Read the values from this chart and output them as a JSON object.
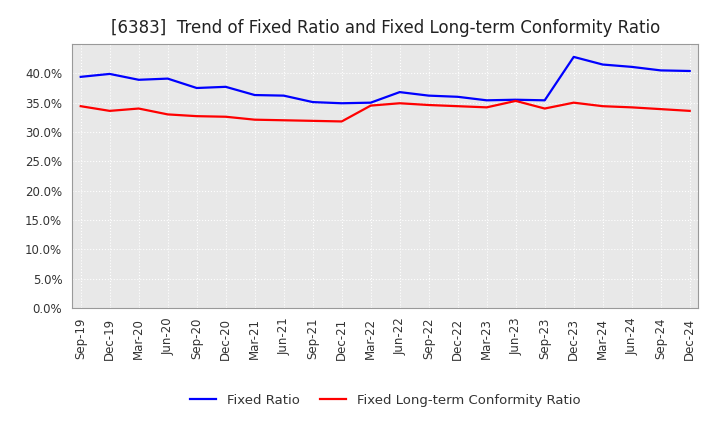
{
  "title": "[6383]  Trend of Fixed Ratio and Fixed Long-term Conformity Ratio",
  "x_labels": [
    "Sep-19",
    "Dec-19",
    "Mar-20",
    "Jun-20",
    "Sep-20",
    "Dec-20",
    "Mar-21",
    "Jun-21",
    "Sep-21",
    "Dec-21",
    "Mar-22",
    "Jun-22",
    "Sep-22",
    "Dec-22",
    "Mar-23",
    "Jun-23",
    "Sep-23",
    "Dec-23",
    "Mar-24",
    "Jun-24",
    "Sep-24",
    "Dec-24"
  ],
  "fixed_ratio": [
    0.394,
    0.399,
    0.389,
    0.391,
    0.375,
    0.377,
    0.363,
    0.362,
    0.351,
    0.349,
    0.35,
    0.368,
    0.362,
    0.36,
    0.354,
    0.355,
    0.354,
    0.428,
    0.415,
    0.411,
    0.405,
    0.404
  ],
  "fixed_ltcr": [
    0.344,
    0.336,
    0.34,
    0.33,
    0.327,
    0.326,
    0.321,
    0.32,
    0.319,
    0.318,
    0.345,
    0.349,
    0.346,
    0.344,
    0.342,
    0.353,
    0.34,
    0.35,
    0.344,
    0.342,
    0.339,
    0.336
  ],
  "fixed_ratio_color": "#0000FF",
  "fixed_ltcr_color": "#FF0000",
  "plot_bg_color": "#E8E8E8",
  "fig_bg_color": "#FFFFFF",
  "grid_color": "#FFFFFF",
  "ylim": [
    0.0,
    0.45
  ],
  "yticks": [
    0.0,
    0.05,
    0.1,
    0.15,
    0.2,
    0.25,
    0.3,
    0.35,
    0.4
  ],
  "legend_fixed_ratio": "Fixed Ratio",
  "legend_fixed_ltcr": "Fixed Long-term Conformity Ratio",
  "title_fontsize": 12,
  "axis_fontsize": 8.5,
  "legend_fontsize": 9.5,
  "linewidth": 1.6
}
